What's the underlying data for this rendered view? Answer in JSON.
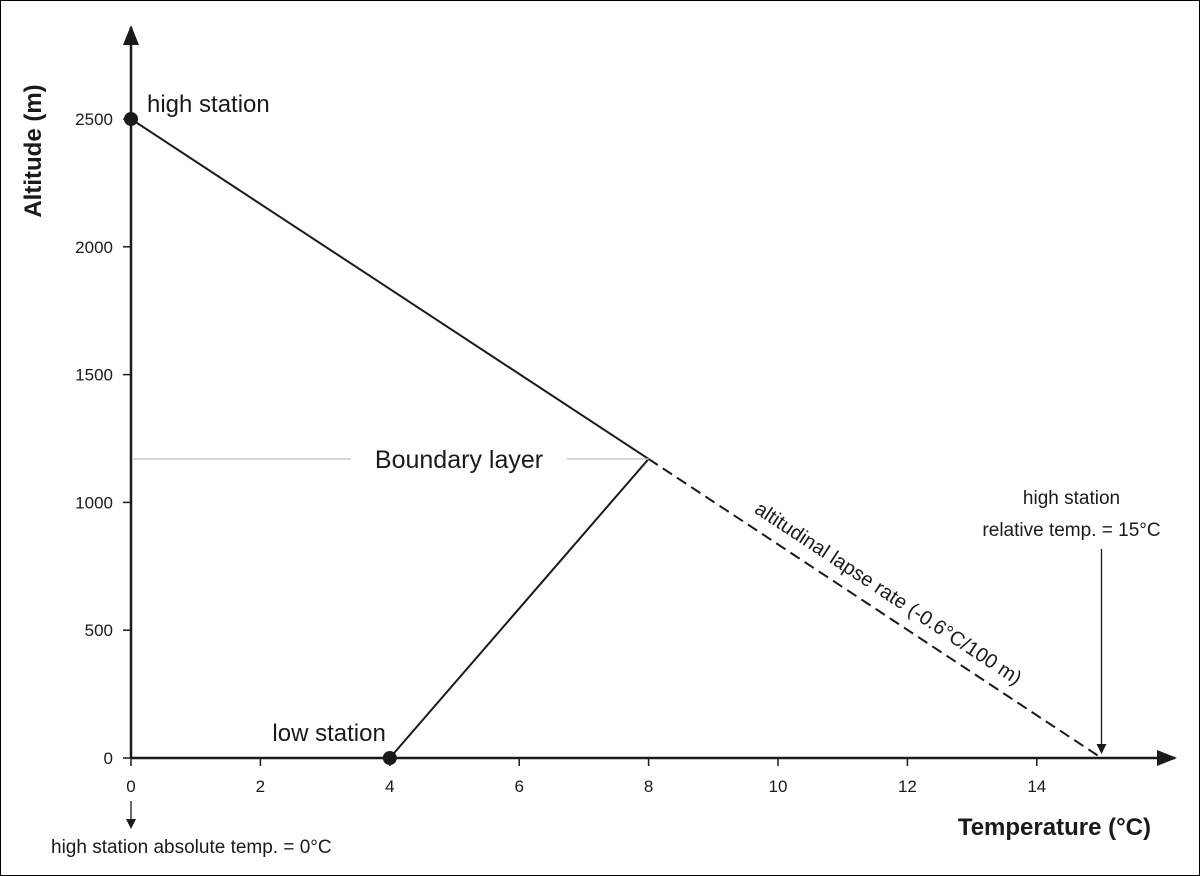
{
  "chart_data": {
    "type": "line",
    "xlabel": "Temperature (°C)",
    "ylabel": "Altitude (m)",
    "xlim": [
      0,
      15.6
    ],
    "ylim": [
      0,
      2500
    ],
    "x_ticks": [
      0,
      2,
      4,
      6,
      8,
      10,
      12,
      14
    ],
    "y_ticks": [
      0,
      500,
      1000,
      1500,
      2000,
      2500
    ],
    "grid": false,
    "series": [
      {
        "style": "solid",
        "x": [
          0,
          8
        ],
        "y": [
          2500,
          1170
        ]
      },
      {
        "style": "solid",
        "x": [
          4,
          8
        ],
        "y": [
          0,
          1170
        ]
      },
      {
        "style": "dashed",
        "x": [
          8,
          15
        ],
        "y": [
          1170,
          0
        ]
      }
    ],
    "points": [
      {
        "label": "high station",
        "x": 0,
        "y": 2500
      },
      {
        "label": "low station",
        "x": 4,
        "y": 0
      }
    ],
    "boundary_layer": {
      "label": "Boundary layer",
      "y": 1170
    },
    "lapse_rate_label": "altitudinal lapse rate (-0.6°C/100 m)",
    "annotations": {
      "relative_temp_line1": "high station",
      "relative_temp_line2": "relative temp. = 15°C",
      "relative_temp_x": 15,
      "absolute_temp": "high station absolute temp. = 0°C",
      "absolute_temp_x": 0
    }
  }
}
